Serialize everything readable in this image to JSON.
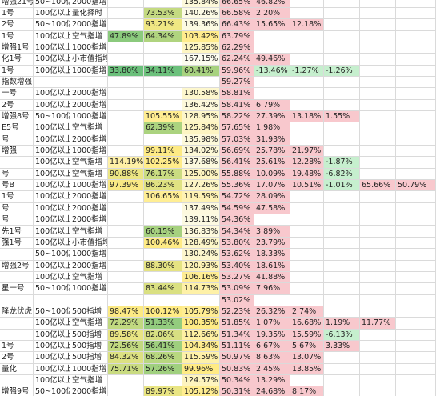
{
  "table": {
    "rows": [
      [
        "增强21号",
        "50~100亿",
        "2000指增",
        null,
        null,
        "135.84%",
        "66.65%",
        "46.82%",
        null,
        null,
        null,
        null
      ],
      [
        "1号",
        "100亿以上",
        "量化择时",
        null,
        "73.53%",
        "140.26%",
        "66.58%",
        "2.20%",
        null,
        null,
        null,
        null
      ],
      [
        "2号",
        "50~100亿",
        "2000指增",
        null,
        "93.21%",
        "139.36%",
        "66.43%",
        "15.65%",
        "12.18%",
        null,
        null,
        null
      ],
      [
        "1号",
        "100亿以上",
        "空气指增",
        "47.89%",
        "64.34%",
        "103.42%",
        "63.79%",
        null,
        null,
        null,
        null,
        null
      ],
      [
        "增强1号",
        "100亿以上",
        "1000指增",
        null,
        null,
        "125.85%",
        "62.29%",
        null,
        null,
        null,
        null,
        null
      ],
      [
        "化1号",
        "100亿以上",
        "小市值指增",
        null,
        null,
        "167.15%",
        "62.24%",
        "49.46%",
        null,
        null,
        null,
        null
      ],
      [
        "1号",
        "100亿以上",
        "1000指增",
        "33.80%",
        "34.11%",
        "60.41%",
        "59.96%",
        "-13.46%",
        "-1.27%",
        "-1.26%",
        null,
        null
      ],
      [
        "指数增强",
        null,
        null,
        null,
        null,
        null,
        "59.27%",
        null,
        null,
        null,
        null,
        null
      ],
      [
        "一号",
        "100亿以上",
        "2000指增",
        null,
        null,
        "130.58%",
        "58.81%",
        null,
        null,
        null,
        null,
        null
      ],
      [
        "2号",
        "100亿以上",
        "2000指增",
        null,
        null,
        "136.42%",
        "58.41%",
        "6.79%",
        null,
        null,
        null,
        null
      ],
      [
        "增强8号",
        "50~100亿",
        "1000指增",
        null,
        "105.55%",
        "128.95%",
        "58.22%",
        "27.39%",
        "13.18%",
        "1.55%",
        null,
        null
      ],
      [
        "E5号",
        "100亿以上",
        "空气指增",
        null,
        "62.39%",
        "125.84%",
        "57.65%",
        "1.98%",
        null,
        null,
        null,
        null
      ],
      [
        "号",
        "100亿以上",
        "2000指增",
        null,
        null,
        "135.98%",
        "57.03%",
        "31.93%",
        null,
        null,
        null,
        null
      ],
      [
        "增强",
        "100亿以上",
        "1000指增",
        null,
        "99.11%",
        "134.02%",
        "56.69%",
        "25.78%",
        "21.97%",
        null,
        null,
        null
      ],
      [
        null,
        "100亿以上",
        "空气指增",
        "114.19%",
        "102.25%",
        "137.68%",
        "56.41%",
        "25.61%",
        "12.28%",
        "-1.87%",
        null,
        null
      ],
      [
        "号",
        "100亿以上",
        "空气指增",
        "90.88%",
        "76.17%",
        "125.00%",
        "55.88%",
        "10.09%",
        "19.48%",
        "-6.82%",
        null,
        null
      ],
      [
        "号B",
        "100亿以上",
        "1000指增",
        "97.39%",
        "86.23%",
        "127.26%",
        "55.36%",
        "17.07%",
        "10.51%",
        "-1.01%",
        "65.66%",
        "50.79%"
      ],
      [
        "1号",
        "100亿以上",
        "2000指增",
        null,
        "106.65%",
        "119.59%",
        "54.72%",
        "28.09%",
        null,
        null,
        null,
        null
      ],
      [
        "号",
        "100亿以上",
        "2000指增",
        null,
        null,
        "137.49%",
        "54.59%",
        "47.58%",
        null,
        null,
        null,
        null
      ],
      [
        "号",
        "100亿以上",
        "2000指增",
        null,
        null,
        "139.11%",
        "54.36%",
        null,
        null,
        null,
        null,
        null
      ],
      [
        "先1号",
        "100亿以上",
        "空气指增",
        null,
        "60.15%",
        "136.83%",
        "54.34%",
        "3.89%",
        null,
        null,
        null,
        null
      ],
      [
        "强1号",
        "100亿以上",
        "小市值指增",
        null,
        "100.46%",
        "128.49%",
        "53.80%",
        "23.79%",
        null,
        null,
        null,
        null
      ],
      [
        null,
        "50~100亿",
        "1000指增",
        null,
        null,
        "130.24%",
        "53.62%",
        "18.33%",
        null,
        null,
        null,
        null
      ],
      [
        "增强2号",
        "100亿以上",
        "2000指增",
        null,
        "88.30%",
        "120.93%",
        "53.40%",
        "18.61%",
        null,
        null,
        null,
        null
      ],
      [
        null,
        "100亿以上",
        "空气指增",
        null,
        null,
        "106.16%",
        "53.27%",
        "41.88%",
        null,
        null,
        null,
        null
      ],
      [
        "星一号",
        "50~100亿",
        "1000指增",
        null,
        "83.44%",
        "114.73%",
        "53.09%",
        "7.96%",
        null,
        null,
        null,
        null
      ],
      [
        null,
        null,
        null,
        null,
        null,
        null,
        "53.02%",
        null,
        null,
        null,
        null,
        null
      ],
      [
        "降龙伏虎",
        "50~100亿",
        "500指增",
        "98.47%",
        "100.12%",
        "105.79%",
        "52.23%",
        "26.32%",
        "2.74%",
        null,
        null,
        null
      ],
      [
        null,
        "100亿以上",
        "空气指增",
        "72.29%",
        "51.33%",
        "100.35%",
        "51.85%",
        "1.07%",
        "16.68%",
        "1.19%",
        "11.77%",
        null
      ],
      [
        null,
        "100亿以上",
        "500指增",
        "89.58%",
        "82.06%",
        "112.66%",
        "51.34%",
        "19.35%",
        "15.59%",
        "-6.13%",
        null,
        null
      ],
      [
        "1号",
        "100亿以上",
        "500指增",
        "72.56%",
        "56.41%",
        "104.34%",
        "51.11%",
        "6.67%",
        "5.67%",
        "3.33%",
        null,
        null
      ],
      [
        "2号",
        "100亿以上",
        "500指增",
        "84.32%",
        "68.26%",
        "115.59%",
        "50.97%",
        "8.63%",
        "13.07%",
        null,
        null,
        null
      ],
      [
        "量化",
        "100亿以上",
        "1000指增",
        "75.71%",
        "57.26%",
        "99.96%",
        "50.83%",
        "2.45%",
        "13.85%",
        null,
        null,
        null
      ],
      [
        null,
        "100亿以上",
        "空气指增",
        null,
        null,
        "124.57%",
        "50.34%",
        "13.29%",
        null,
        null,
        null,
        null
      ],
      [
        "增强9号",
        "50~100亿",
        "2000指增",
        null,
        "89.97%",
        "105.12%",
        "50.31%",
        "24.68%",
        "8.17%",
        null,
        null,
        null
      ]
    ]
  }
}
